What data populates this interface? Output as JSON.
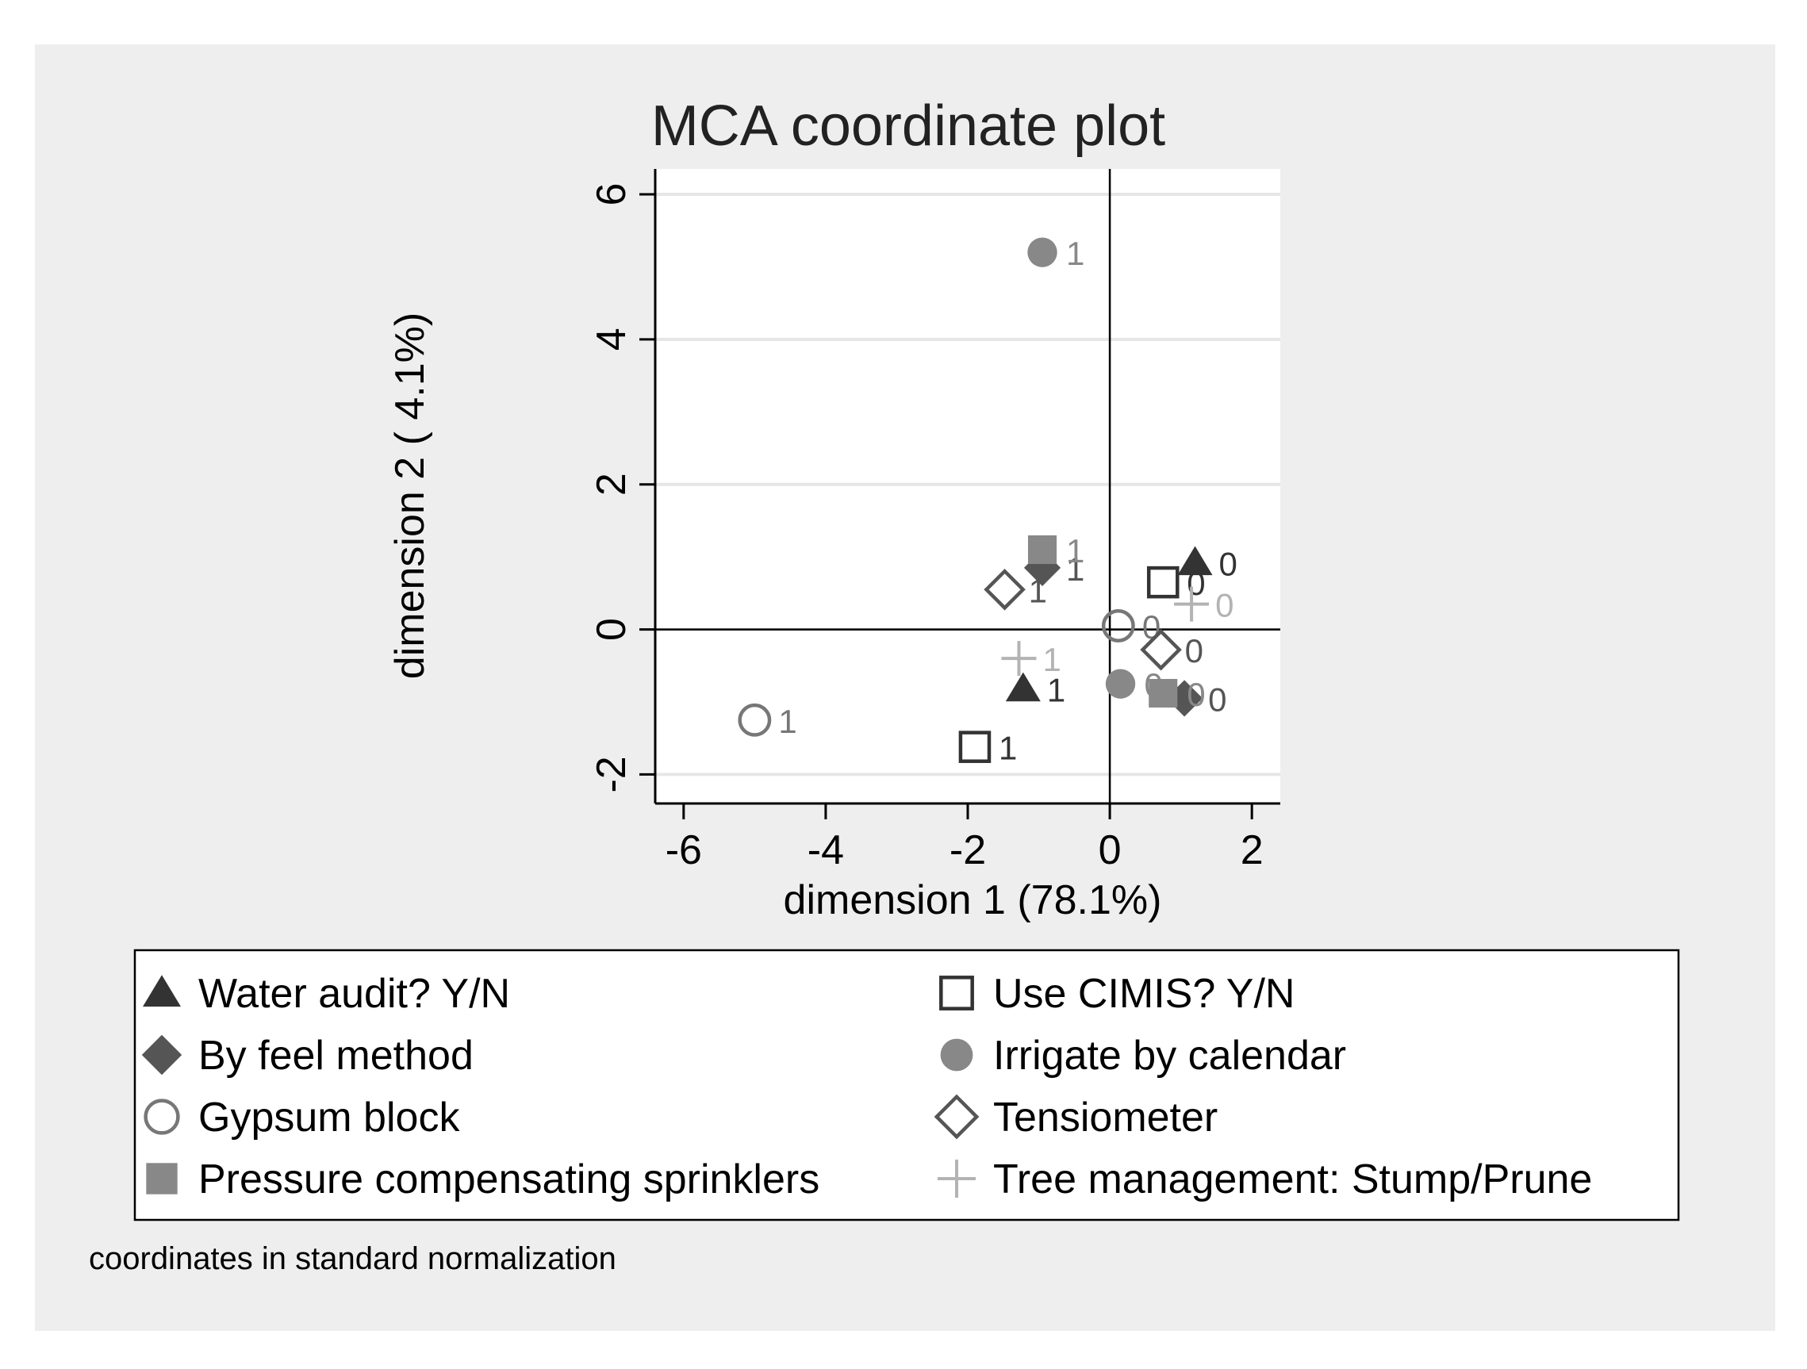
{
  "colors": {
    "outer_bg": "#eeeeee",
    "plot_bg": "#ffffff",
    "gridline": "#e6e6e6",
    "axis": "#000000",
    "dark": "#333333",
    "mid": "#555555",
    "gray": "#777777",
    "light_gray": "#999999",
    "lighter_gray": "#b3b3b3"
  },
  "note": "coordinates in standard normalization",
  "chart_data": {
    "type": "scatter",
    "title": "MCA coordinate plot",
    "xlabel": "dimension 1 (78.1%)",
    "ylabel": "dimension 2 ( 4.1%)",
    "xlim": [
      -6.4,
      2.4
    ],
    "ylim": [
      -2.4,
      6.35
    ],
    "xticks": [
      -6,
      -4,
      -2,
      0,
      2
    ],
    "yticks": [
      -2,
      0,
      2,
      4,
      6
    ],
    "xtick_labels": [
      "-6",
      "-4",
      "-2",
      "0",
      "2"
    ],
    "ytick_labels": [
      "-2",
      "0",
      "2",
      "4",
      "6"
    ],
    "reference_lines": {
      "x": 0,
      "y": 0
    },
    "legend_position": "bottom",
    "series": [
      {
        "name": "Water audit? Y/N",
        "marker": "triangle",
        "filled": true,
        "color": "#333333",
        "points": [
          {
            "x": -1.22,
            "y": -0.82,
            "label": "1"
          },
          {
            "x": 1.2,
            "y": 0.92,
            "label": "0"
          }
        ]
      },
      {
        "name": "Use CIMIS? Y/N",
        "marker": "square",
        "filled": false,
        "color": "#333333",
        "points": [
          {
            "x": -1.9,
            "y": -1.62,
            "label": "1"
          },
          {
            "x": 0.75,
            "y": 0.65,
            "label": "0"
          }
        ]
      },
      {
        "name": "By feel method",
        "marker": "diamond",
        "filled": true,
        "color": "#555555",
        "points": [
          {
            "x": -0.95,
            "y": 0.85,
            "label": "1"
          },
          {
            "x": 1.05,
            "y": -0.95,
            "label": "0"
          }
        ]
      },
      {
        "name": "Irrigate by calendar",
        "marker": "circle",
        "filled": true,
        "color": "#888888",
        "points": [
          {
            "x": -0.95,
            "y": 5.2,
            "label": "1"
          },
          {
            "x": 0.15,
            "y": -0.75,
            "label": "0"
          }
        ]
      },
      {
        "name": "Gypsum block",
        "marker": "circle",
        "filled": false,
        "color": "#777777",
        "points": [
          {
            "x": -5.0,
            "y": -1.25,
            "label": "1"
          },
          {
            "x": 0.12,
            "y": 0.05,
            "label": "0"
          }
        ]
      },
      {
        "name": "Tensiometer",
        "marker": "diamond",
        "filled": false,
        "color": "#555555",
        "points": [
          {
            "x": -1.48,
            "y": 0.55,
            "label": "1"
          },
          {
            "x": 0.72,
            "y": -0.28,
            "label": "0"
          }
        ]
      },
      {
        "name": "Pressure compensating sprinklers",
        "marker": "square",
        "filled": true,
        "color": "#888888",
        "points": [
          {
            "x": -0.95,
            "y": 1.1,
            "label": "1"
          },
          {
            "x": 0.75,
            "y": -0.88,
            "label": "0"
          }
        ]
      },
      {
        "name": "Tree management: Stump/Prune",
        "marker": "plus",
        "filled": false,
        "color": "#b3b3b3",
        "points": [
          {
            "x": -1.28,
            "y": -0.4,
            "label": "1"
          },
          {
            "x": 1.15,
            "y": 0.35,
            "label": "0"
          }
        ]
      }
    ],
    "legend_order": [
      "Water audit? Y/N",
      "Use CIMIS? Y/N",
      "By feel method",
      "Irrigate by calendar",
      "Gypsum block",
      "Tensiometer",
      "Pressure compensating sprinklers",
      "Tree management: Stump/Prune"
    ]
  }
}
